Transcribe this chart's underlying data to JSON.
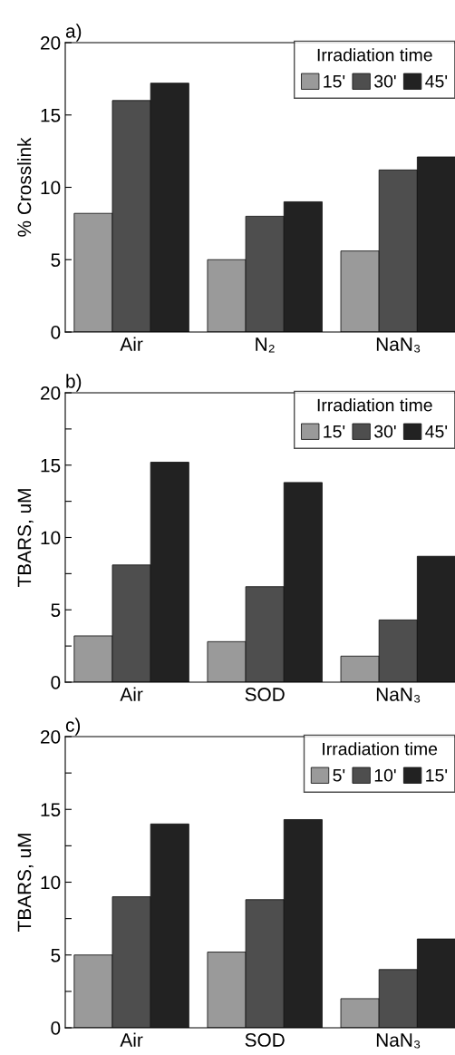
{
  "chart_data": [
    {
      "type": "bar",
      "title": "a)",
      "ylabel": "% Crosslink",
      "categories": [
        "Air",
        "N₂",
        "NaN₃"
      ],
      "legend": "top right",
      "legend_title": "Irradiation time",
      "ylim": [
        0,
        20
      ],
      "yticks": [
        0,
        5,
        10,
        15,
        20
      ],
      "series": [
        {
          "name": "15'",
          "color": "#9a9a9a",
          "values": [
            8.2,
            5.0,
            5.6
          ]
        },
        {
          "name": "30'",
          "color": "#4e4e4e",
          "values": [
            16.0,
            8.0,
            11.2
          ]
        },
        {
          "name": "45'",
          "color": "#222222",
          "values": [
            17.2,
            9.0,
            12.1
          ]
        }
      ]
    },
    {
      "type": "bar",
      "title": "b)",
      "ylabel": "TBARS, uM",
      "categories": [
        "Air",
        "SOD",
        "NaN₃"
      ],
      "legend": "top right",
      "legend_title": "Irradiation time",
      "ylim": [
        0,
        20
      ],
      "yticks": [
        0,
        {
          "value": 2.5,
          "label": null
        },
        5,
        {
          "value": 7.5,
          "label": null
        },
        10,
        {
          "value": 12.5,
          "label": null
        },
        15,
        {
          "value": 17.5,
          "label": null
        },
        20
      ],
      "series": [
        {
          "name": "15'",
          "color": "#9a9a9a",
          "values": [
            3.2,
            2.8,
            1.8
          ]
        },
        {
          "name": "30'",
          "color": "#4e4e4e",
          "values": [
            8.1,
            6.6,
            4.3
          ]
        },
        {
          "name": "45'",
          "color": "#222222",
          "values": [
            15.2,
            13.8,
            8.7
          ]
        }
      ]
    },
    {
      "type": "bar",
      "title": "c)",
      "ylabel": "TBARS, uM",
      "categories": [
        "Air",
        "SOD",
        "NaN₃"
      ],
      "legend": "top right",
      "legend_title": "Irradiation time",
      "ylim": [
        0,
        20
      ],
      "yticks": [
        0,
        {
          "value": 2.5,
          "label": null
        },
        5,
        {
          "value": 7.5,
          "label": null
        },
        10,
        {
          "value": 12.5,
          "label": null
        },
        15,
        {
          "value": 17.5,
          "label": null
        },
        20
      ],
      "series": [
        {
          "name": "5'",
          "color": "#9a9a9a",
          "values": [
            5.0,
            5.2,
            2.0
          ]
        },
        {
          "name": "10'",
          "color": "#4e4e4e",
          "values": [
            9.0,
            8.8,
            4.0
          ]
        },
        {
          "name": "15'",
          "color": "#222222",
          "values": [
            14.0,
            14.3,
            6.1
          ]
        }
      ]
    }
  ]
}
